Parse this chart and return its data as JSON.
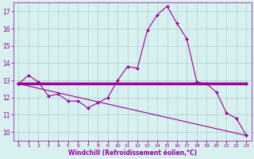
{
  "xlabel": "Windchill (Refroidissement éolien,°C)",
  "line1_x": [
    0,
    1,
    2,
    3,
    4,
    5,
    6,
    7,
    8,
    9,
    10,
    11,
    12,
    13,
    14,
    15,
    16,
    17,
    18,
    19,
    20,
    21,
    22,
    23
  ],
  "line1_y": [
    12.8,
    13.3,
    12.9,
    12.1,
    12.2,
    11.8,
    11.8,
    11.4,
    11.7,
    12.0,
    13.0,
    13.8,
    13.7,
    15.9,
    16.8,
    17.3,
    16.3,
    15.4,
    12.9,
    12.8,
    12.3,
    11.1,
    10.8,
    9.8
  ],
  "line2_x": [
    0,
    23
  ],
  "line2_y": [
    12.8,
    12.8
  ],
  "line3_x": [
    0,
    23
  ],
  "line3_y": [
    12.8,
    9.8
  ],
  "line_color": "#990099",
  "marker": "D",
  "marker_size": 2,
  "bg_color": "#d8f0f0",
  "grid_color": "#aacfcf",
  "xlim": [
    -0.5,
    23.5
  ],
  "ylim": [
    9.5,
    17.5
  ],
  "yticks": [
    10,
    11,
    12,
    13,
    14,
    15,
    16,
    17
  ],
  "xtick_labels": [
    "0",
    "1",
    "2",
    "3",
    "4",
    "5",
    "6",
    "7",
    "8",
    "9",
    "10",
    "11",
    "12",
    "13",
    "14",
    "15",
    "16",
    "17",
    "18",
    "19",
    "20",
    "21",
    "22",
    "23"
  ],
  "tick_color": "#990099",
  "label_color": "#990099",
  "figsize": [
    3.2,
    2.0
  ],
  "dpi": 100
}
